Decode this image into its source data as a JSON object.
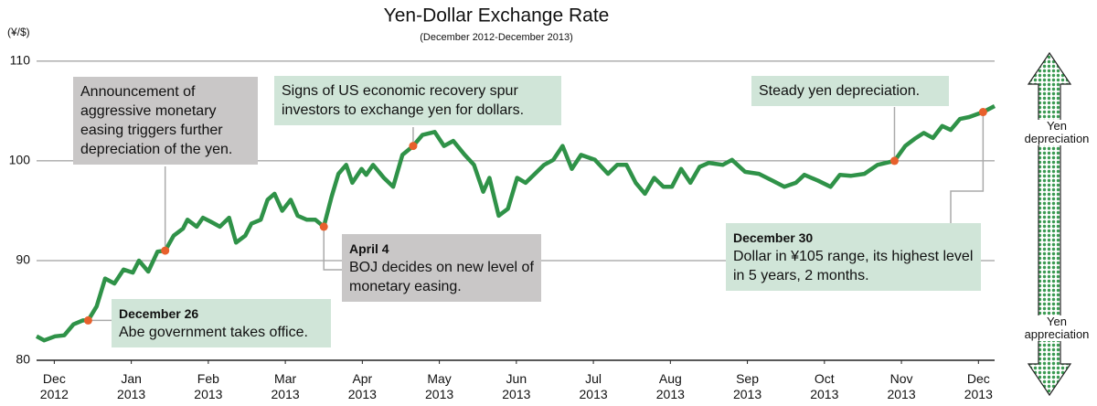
{
  "chart_data": {
    "type": "line",
    "title": "Yen-Dollar Exchange Rate",
    "subtitle": "(December 2012-December 2013)",
    "y_unit": "(¥/$)",
    "xlim": [
      -0.23,
      12.21
    ],
    "xticks": [
      {
        "value": 0,
        "label": "Dec 2012"
      },
      {
        "value": 1,
        "label": "Jan 2013"
      },
      {
        "value": 2,
        "label": "Feb 2013"
      },
      {
        "value": 3,
        "label": "Mar 2013"
      },
      {
        "value": 4,
        "label": "Apr 2013"
      },
      {
        "value": 5,
        "label": "May 2013"
      },
      {
        "value": 6,
        "label": "Jun 2013"
      },
      {
        "value": 7,
        "label": "Jul 2013"
      },
      {
        "value": 8,
        "label": "Aug 2013"
      },
      {
        "value": 9,
        "label": "Sep 2013"
      },
      {
        "value": 10,
        "label": "Oct 2013"
      },
      {
        "value": 11,
        "label": "Nov 2013"
      },
      {
        "value": 12,
        "label": "Dec 2013"
      }
    ],
    "ylim": [
      80,
      111
    ],
    "yticks": [
      80,
      90,
      100,
      110
    ],
    "grid": true,
    "series": [
      {
        "color": "#2f9248",
        "x": [
          -0.23,
          -0.13,
          0.01,
          0.13,
          0.25,
          0.37,
          0.44,
          0.55,
          0.66,
          0.78,
          0.9,
          1.02,
          1.1,
          1.22,
          1.34,
          1.44,
          1.55,
          1.67,
          1.73,
          1.85,
          1.93,
          2.03,
          2.15,
          2.27,
          2.36,
          2.48,
          2.56,
          2.68,
          2.77,
          2.86,
          2.96,
          3.07,
          3.16,
          3.28,
          3.39,
          3.5,
          3.6,
          3.69,
          3.79,
          3.87,
          3.99,
          4.05,
          4.14,
          4.28,
          4.4,
          4.52,
          4.66,
          4.78,
          4.94,
          5.06,
          5.18,
          5.33,
          5.45,
          5.57,
          5.65,
          5.77,
          5.89,
          6.01,
          6.12,
          6.24,
          6.36,
          6.48,
          6.6,
          6.72,
          6.84,
          7.02,
          7.19,
          7.31,
          7.43,
          7.55,
          7.67,
          7.79,
          7.91,
          8.02,
          8.14,
          8.26,
          8.38,
          8.5,
          8.68,
          8.8,
          8.97,
          9.15,
          9.33,
          9.48,
          9.63,
          9.74,
          9.92,
          10.08,
          10.2,
          10.34,
          10.52,
          10.69,
          10.91,
          11.05,
          11.17,
          11.29,
          11.41,
          11.53,
          11.64,
          11.76,
          11.88,
          12.06,
          12.21
        ],
        "values": [
          82.4,
          82.0,
          82.4,
          82.5,
          83.6,
          84.0,
          84.0,
          85.4,
          88.2,
          87.7,
          89.1,
          88.8,
          90.0,
          88.9,
          90.9,
          91.0,
          92.5,
          93.2,
          94.1,
          93.4,
          94.3,
          93.9,
          93.4,
          94.3,
          91.8,
          92.5,
          93.7,
          94.1,
          96.1,
          96.7,
          95.0,
          96.1,
          94.5,
          94.1,
          94.1,
          93.4,
          96.4,
          98.7,
          99.6,
          97.8,
          99.2,
          98.6,
          99.6,
          98.3,
          97.4,
          100.6,
          101.5,
          102.6,
          102.9,
          101.5,
          102.0,
          100.6,
          99.6,
          96.9,
          98.3,
          94.5,
          95.2,
          98.3,
          97.8,
          98.7,
          99.6,
          100.1,
          101.5,
          99.2,
          100.6,
          100.1,
          98.7,
          99.6,
          99.6,
          97.8,
          96.7,
          98.3,
          97.4,
          97.4,
          99.2,
          97.8,
          99.4,
          99.8,
          99.6,
          100.1,
          98.9,
          98.7,
          98.0,
          97.4,
          97.8,
          98.6,
          98.0,
          97.4,
          98.6,
          98.5,
          98.7,
          99.6,
          100.0,
          101.5,
          102.2,
          102.8,
          102.3,
          103.5,
          103.1,
          104.2,
          104.4,
          104.9,
          105.5
        ]
      }
    ],
    "annotations": [
      {
        "text": "Announcement of aggressive monetary easing triggers further depreciation of the yen.",
        "x": 1.44,
        "y": 91.0
      },
      {
        "title": "December 26",
        "text": "Abe government takes office.",
        "x": 0.44,
        "y": 84.0
      },
      {
        "title": "April 4",
        "text": "BOJ decides on new level of monetary easing.",
        "x": 3.5,
        "y": 93.4
      },
      {
        "text": "Signs of US economic recovery spur investors to exchange yen for dollars.",
        "x": 4.66,
        "y": 101.5
      },
      {
        "text": "Steady yen depreciation.",
        "x": 10.91,
        "y": 100.0
      },
      {
        "title": "December 30",
        "text": "Dollar in ¥105 range, its highest level in 5 years, 2 months.",
        "x": 12.06,
        "y": 104.9
      }
    ],
    "side_legend": {
      "top": "Yen depreciation",
      "bottom": "Yen appreciation"
    }
  }
}
